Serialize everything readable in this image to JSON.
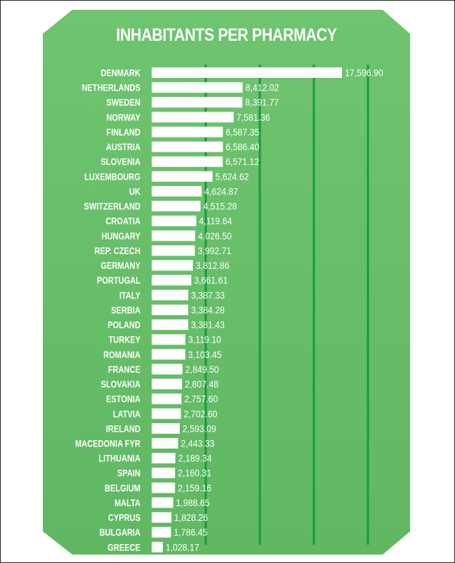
{
  "chart_data": {
    "type": "bar",
    "orientation": "horizontal",
    "title": "INHABITANTS PER PHARMACY",
    "categories": [
      "DENMARK",
      "NETHERLANDS",
      "SWEDEN",
      "NORWAY",
      "FINLAND",
      "AUSTRIA",
      "SLOVENIA",
      "LUXEMBOURG",
      "UK",
      "SWITZERLAND",
      "CROATIA",
      "HUNGARY",
      "REP. CZECH",
      "GERMANY",
      "PORTUGAL",
      "ITALY",
      "SERBIA",
      "POLAND",
      "TURKEY",
      "ROMANIA",
      "FRANCE",
      "SLOVAKIA",
      "ESTONIA",
      "LATVIA",
      "IRELAND",
      "MACEDONIA FYR",
      "LITHUANIA",
      "SPAIN",
      "BELGIUM",
      "MALTA",
      "CYPRUS",
      "BULGARIA",
      "GREECE"
    ],
    "values": [
      17596.9,
      8412.02,
      8391.77,
      7581.36,
      6587.35,
      6586.4,
      6571.12,
      5624.62,
      4624.87,
      4515.28,
      4119.64,
      4026.5,
      3992.71,
      3812.86,
      3661.61,
      3387.33,
      3384.28,
      3381.43,
      3119.1,
      3103.45,
      2849.5,
      2807.48,
      2757.6,
      2702.6,
      2593.09,
      2443.33,
      2189.34,
      2160.31,
      2159.16,
      1988.65,
      1828.26,
      1786.45,
      1028.17
    ],
    "value_labels": [
      "17,596.90",
      "8,412.02",
      "8,391.77",
      "7,581.36",
      "6,587.35",
      "6,586.40",
      "6,571.12",
      "5,624.62",
      "4,624.87",
      "4,515.28",
      "4,119.64",
      "4,026.50",
      "3,992.71",
      "3,812.86",
      "3,661.61",
      "3,387.33",
      "3,384.28",
      "3,381.43",
      "3,119.10",
      "3,103.45",
      "2,849.50",
      "2,807.48",
      "2,757.60",
      "2,702.60",
      "2,593.09",
      "2,443.33",
      "2,189.34",
      "2,160.31",
      "2,159.16",
      "1,988.65",
      "1,828.26",
      "1,786.45",
      "1,028.17"
    ],
    "xlim": [
      0,
      20000
    ],
    "grid": true,
    "colors": {
      "background": "#6cc06e",
      "bar": "#ffffff",
      "grid": "#179a3e",
      "text": "#ffffff"
    }
  }
}
